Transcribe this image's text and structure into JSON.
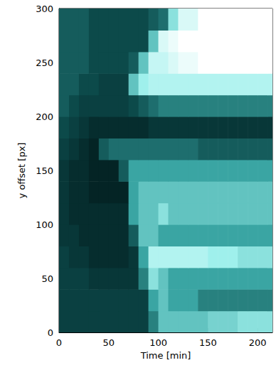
{
  "chart_data": {
    "type": "heatmap",
    "x_label": "Time [min]",
    "y_label": "y offset [px]",
    "xlim": [
      0,
      215
    ],
    "ylim": [
      0,
      300
    ],
    "xticks": [
      0,
      50,
      100,
      150,
      200
    ],
    "yticks": [
      0,
      50,
      100,
      150,
      200,
      250,
      300
    ],
    "zlim": [
      0,
      1
    ],
    "x": [
      5,
      15,
      25,
      35,
      45,
      55,
      65,
      75,
      85,
      95,
      105,
      115,
      125,
      135,
      145,
      155,
      165,
      175,
      185,
      195,
      205,
      215
    ],
    "y": [
      10,
      30,
      50,
      70,
      90,
      110,
      130,
      150,
      170,
      190,
      210,
      230,
      250,
      270,
      290
    ],
    "values": [
      [
        0.2,
        0.2,
        0.2,
        0.2,
        0.2,
        0.2,
        0.2,
        0.2,
        0.2,
        0.4,
        0.6,
        0.6,
        0.6,
        0.6,
        0.6,
        0.65,
        0.65,
        0.65,
        0.7,
        0.7,
        0.7,
        0.7
      ],
      [
        0.2,
        0.2,
        0.2,
        0.2,
        0.2,
        0.2,
        0.2,
        0.2,
        0.2,
        0.5,
        0.6,
        0.5,
        0.5,
        0.5,
        0.4,
        0.4,
        0.4,
        0.4,
        0.4,
        0.4,
        0.4,
        0.4
      ],
      [
        0.2,
        0.2,
        0.2,
        0.15,
        0.15,
        0.15,
        0.15,
        0.15,
        0.4,
        0.7,
        0.6,
        0.5,
        0.5,
        0.5,
        0.5,
        0.5,
        0.5,
        0.5,
        0.5,
        0.5,
        0.5,
        0.5
      ],
      [
        0.2,
        0.15,
        0.15,
        0.1,
        0.1,
        0.1,
        0.1,
        0.15,
        0.5,
        0.8,
        0.8,
        0.8,
        0.8,
        0.8,
        0.8,
        0.75,
        0.75,
        0.75,
        0.7,
        0.7,
        0.7,
        0.7
      ],
      [
        0.15,
        0.15,
        0.1,
        0.1,
        0.1,
        0.1,
        0.1,
        0.3,
        0.6,
        0.6,
        0.5,
        0.5,
        0.5,
        0.5,
        0.5,
        0.5,
        0.5,
        0.5,
        0.5,
        0.5,
        0.5,
        0.5
      ],
      [
        0.15,
        0.1,
        0.1,
        0.1,
        0.1,
        0.1,
        0.1,
        0.5,
        0.6,
        0.6,
        0.7,
        0.6,
        0.6,
        0.6,
        0.6,
        0.6,
        0.6,
        0.6,
        0.6,
        0.6,
        0.6,
        0.6
      ],
      [
        0.15,
        0.1,
        0.1,
        0.05,
        0.05,
        0.05,
        0.05,
        0.5,
        0.6,
        0.6,
        0.6,
        0.6,
        0.6,
        0.6,
        0.6,
        0.6,
        0.6,
        0.6,
        0.6,
        0.6,
        0.6,
        0.6
      ],
      [
        0.15,
        0.1,
        0.1,
        0.05,
        0.05,
        0.05,
        0.3,
        0.5,
        0.5,
        0.5,
        0.5,
        0.5,
        0.5,
        0.5,
        0.5,
        0.5,
        0.5,
        0.5,
        0.5,
        0.5,
        0.5,
        0.5
      ],
      [
        0.2,
        0.15,
        0.1,
        0.05,
        0.3,
        0.35,
        0.35,
        0.35,
        0.35,
        0.35,
        0.35,
        0.35,
        0.35,
        0.35,
        0.3,
        0.3,
        0.3,
        0.3,
        0.3,
        0.3,
        0.3,
        0.3
      ],
      [
        0.25,
        0.2,
        0.15,
        0.1,
        0.1,
        0.1,
        0.1,
        0.1,
        0.1,
        0.15,
        0.15,
        0.15,
        0.15,
        0.15,
        0.15,
        0.15,
        0.15,
        0.15,
        0.15,
        0.15,
        0.15,
        0.15
      ],
      [
        0.3,
        0.25,
        0.2,
        0.2,
        0.2,
        0.2,
        0.2,
        0.25,
        0.3,
        0.35,
        0.4,
        0.4,
        0.4,
        0.4,
        0.4,
        0.4,
        0.4,
        0.4,
        0.4,
        0.4,
        0.4,
        0.4
      ],
      [
        0.3,
        0.3,
        0.25,
        0.25,
        0.2,
        0.2,
        0.2,
        0.6,
        0.75,
        0.8,
        0.8,
        0.8,
        0.8,
        0.8,
        0.8,
        0.8,
        0.8,
        0.8,
        0.8,
        0.8,
        0.8,
        0.8
      ],
      [
        0.3,
        0.3,
        0.3,
        0.25,
        0.25,
        0.25,
        0.25,
        0.3,
        0.6,
        0.85,
        0.85,
        0.9,
        0.95,
        0.95,
        1,
        1,
        1,
        1,
        1,
        1,
        1,
        1
      ],
      [
        0.3,
        0.3,
        0.3,
        0.25,
        0.25,
        0.25,
        0.25,
        0.25,
        0.25,
        0.6,
        0.9,
        0.95,
        1,
        1,
        1,
        1,
        1,
        1,
        1,
        1,
        1,
        1
      ],
      [
        0.3,
        0.3,
        0.3,
        0.25,
        0.25,
        0.25,
        0.25,
        0.25,
        0.25,
        0.3,
        0.35,
        0.7,
        0.9,
        0.9,
        1,
        1,
        1,
        1,
        1,
        1,
        1,
        1
      ]
    ]
  }
}
